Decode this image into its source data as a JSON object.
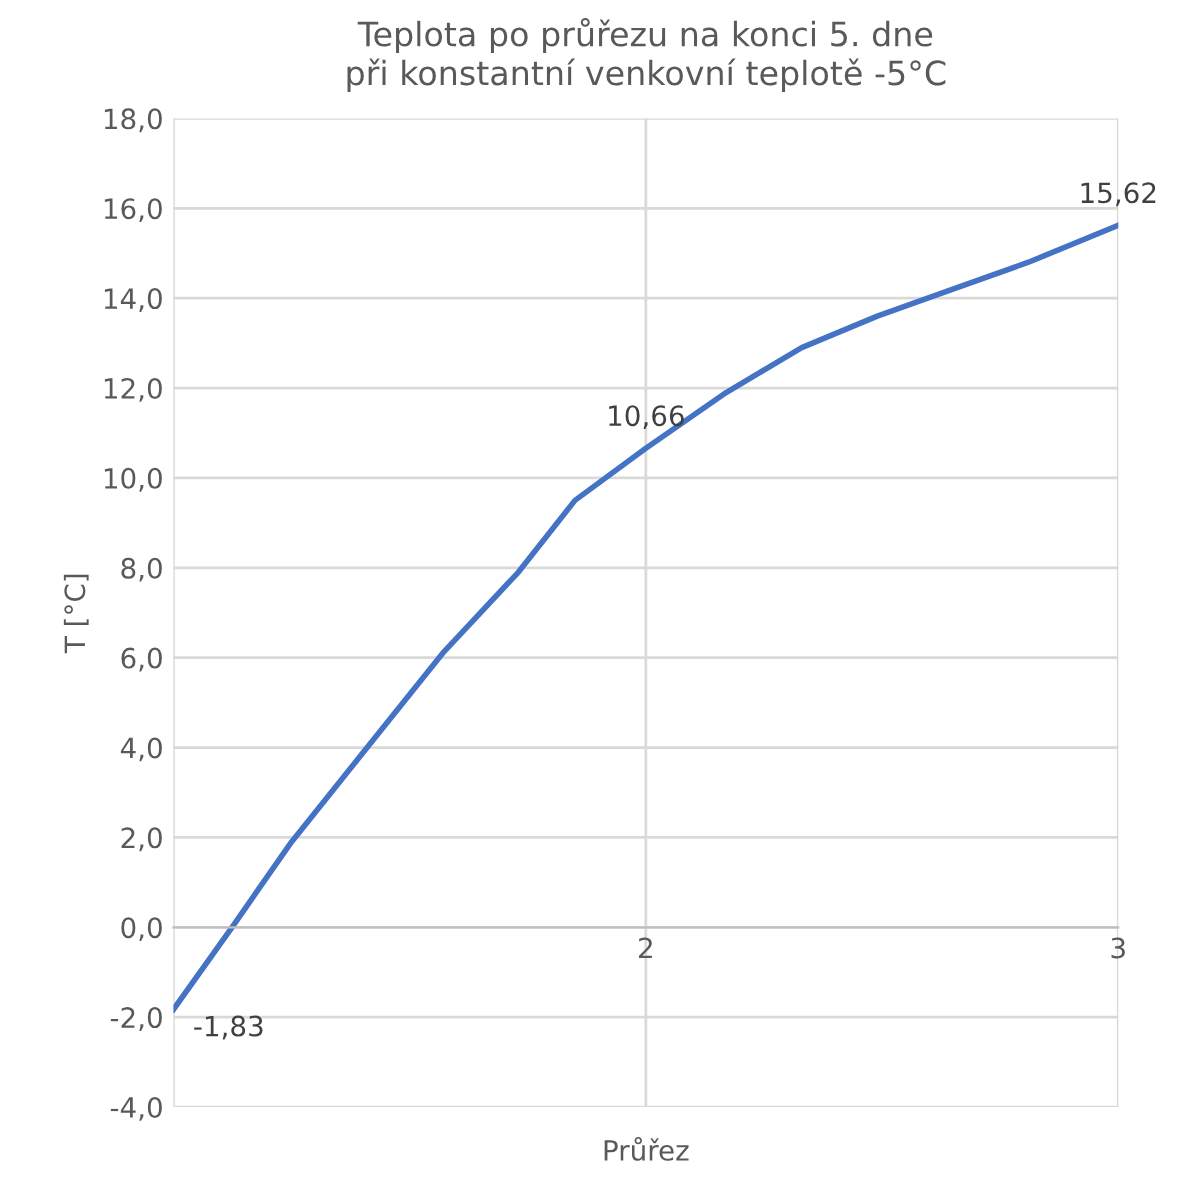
{
  "chart_data": {
    "type": "line",
    "title": "Teplota po průřezu na konci 5. dne\npři konstantní venkovní teplotě -5°C",
    "xlabel": "Průřez",
    "ylabel": "T [°C]",
    "x": [
      1,
      1.124,
      1.25,
      1.41,
      1.57,
      1.73,
      1.85,
      2,
      2.17,
      2.33,
      2.49,
      2.65,
      2.81,
      3
    ],
    "series": [
      {
        "color": "#4472c4",
        "values": [
          -1.83,
          0.0,
          1.9,
          4.0,
          6.1,
          7.9,
          9.5,
          10.66,
          11.9,
          12.9,
          13.6,
          14.2,
          14.8,
          15.62
        ],
        "value_labels": [
          "-1,83",
          null,
          null,
          null,
          null,
          null,
          null,
          "10,66",
          null,
          null,
          null,
          null,
          null,
          "15,62"
        ]
      }
    ],
    "xlim": [
      1,
      3
    ],
    "xticks": [
      {
        "value": 1,
        "label": null
      },
      2,
      3
    ],
    "ylim": [
      -4,
      18
    ],
    "yticks": [
      {
        "value": -4,
        "label": "-4,0"
      },
      {
        "value": -2,
        "label": "-2,0"
      },
      {
        "value": 0,
        "label": "0,0"
      },
      {
        "value": 2,
        "label": "2,0"
      },
      {
        "value": 4,
        "label": "4,0"
      },
      {
        "value": 6,
        "label": "6,0"
      },
      {
        "value": 8,
        "label": "8,0"
      },
      {
        "value": 10,
        "label": "10,0"
      },
      {
        "value": 12,
        "label": "12,0"
      },
      {
        "value": 14,
        "label": "14,0"
      },
      {
        "value": 16,
        "label": "16,0"
      },
      {
        "value": 18,
        "label": "18,0"
      }
    ],
    "grid": true,
    "marker": "none",
    "line_style": "solid",
    "legend": false
  }
}
